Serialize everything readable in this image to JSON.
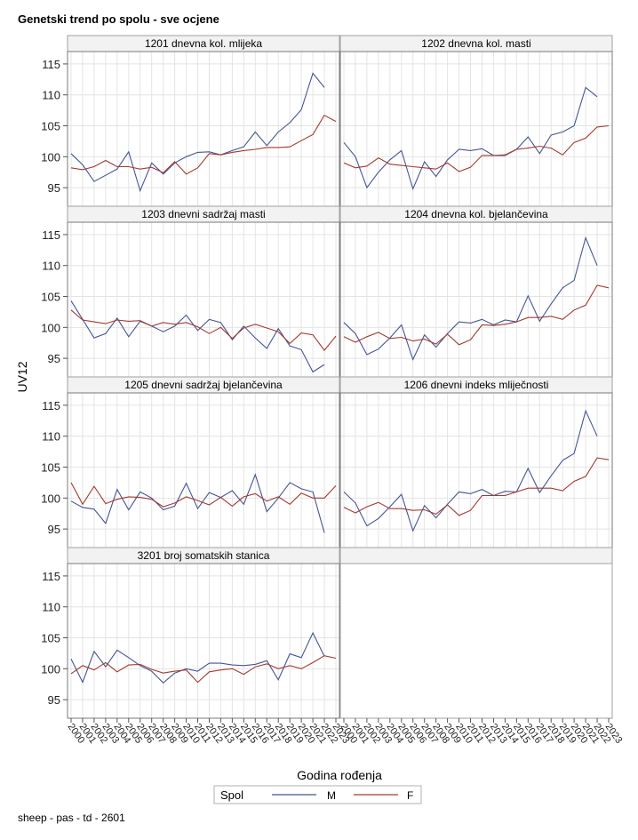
{
  "page": {
    "title": "Genetski trend po spolu - sve ocjene",
    "footnote": "sheep - pas - td - 2601"
  },
  "chart_data": {
    "type": "line",
    "title": "Genetski trend po spolu - sve ocjene",
    "xlabel": "Godina rođenja",
    "ylabel": "UV12",
    "ylim": [
      92,
      117
    ],
    "yticks": [
      95,
      100,
      105,
      110,
      115
    ],
    "xlim": [
      2000,
      2023
    ],
    "xticks": [
      2000,
      2001,
      2002,
      2003,
      2004,
      2005,
      2006,
      2007,
      2008,
      2009,
      2010,
      2011,
      2012,
      2013,
      2014,
      2015,
      2016,
      2017,
      2018,
      2019,
      2020,
      2021,
      2022,
      2023
    ],
    "grid": true,
    "legend": {
      "title": "Spol",
      "position": "bottom",
      "entries": [
        {
          "label": "M",
          "color": "#445694"
        },
        {
          "label": "F",
          "color": "#A23A2E"
        }
      ]
    },
    "panels": [
      {
        "title": "1201 dnevna kol. mlijeka",
        "series": [
          {
            "name": "M",
            "x": [
              2000,
              2001,
              2002,
              2003,
              2004,
              2005,
              2006,
              2007,
              2008,
              2009,
              2010,
              2011,
              2012,
              2013,
              2014,
              2015,
              2016,
              2017,
              2018,
              2019,
              2020,
              2021,
              2022
            ],
            "values": [
              100.5,
              98.7,
              96.0,
              97.0,
              98.0,
              100.8,
              94.5,
              99.0,
              97.2,
              99.0,
              100.0,
              100.7,
              100.8,
              100.3,
              101.0,
              101.6,
              104.0,
              101.8,
              104.0,
              105.5,
              107.6,
              113.5,
              111.2
            ]
          },
          {
            "name": "F",
            "x": [
              2000,
              2001,
              2002,
              2003,
              2004,
              2005,
              2006,
              2007,
              2008,
              2009,
              2010,
              2011,
              2012,
              2013,
              2014,
              2015,
              2016,
              2017,
              2018,
              2019,
              2020,
              2021,
              2022,
              2023
            ],
            "values": [
              98.2,
              97.9,
              98.4,
              99.4,
              98.4,
              98.4,
              98.0,
              98.3,
              97.4,
              99.2,
              97.2,
              98.2,
              100.5,
              100.3,
              100.7,
              101.0,
              101.2,
              101.5,
              101.5,
              101.6,
              102.6,
              103.6,
              106.7,
              105.7
            ]
          }
        ]
      },
      {
        "title": "1202 dnevna kol. masti",
        "series": [
          {
            "name": "M",
            "x": [
              2000,
              2001,
              2002,
              2003,
              2004,
              2005,
              2006,
              2007,
              2008,
              2009,
              2010,
              2011,
              2012,
              2013,
              2014,
              2015,
              2016,
              2017,
              2018,
              2019,
              2020,
              2021,
              2022
            ],
            "values": [
              102.3,
              100.0,
              95.0,
              97.5,
              99.5,
              101.0,
              94.8,
              99.2,
              96.8,
              99.5,
              101.2,
              101.0,
              101.3,
              100.2,
              100.2,
              101.2,
              103.2,
              100.5,
              103.5,
              104.0,
              105.0,
              111.2,
              109.7
            ]
          },
          {
            "name": "F",
            "x": [
              2000,
              2001,
              2002,
              2003,
              2004,
              2005,
              2006,
              2007,
              2008,
              2009,
              2010,
              2011,
              2012,
              2013,
              2014,
              2015,
              2016,
              2017,
              2018,
              2019,
              2020,
              2021,
              2022,
              2023
            ],
            "values": [
              99.0,
              98.2,
              98.5,
              99.8,
              98.8,
              98.6,
              98.4,
              98.2,
              98.0,
              99.0,
              97.6,
              98.3,
              100.2,
              100.2,
              100.3,
              101.2,
              101.4,
              101.7,
              101.4,
              100.3,
              102.3,
              103.0,
              104.8,
              105.0
            ]
          }
        ]
      },
      {
        "title": "1203 dnevni sadržaj masti",
        "series": [
          {
            "name": "M",
            "x": [
              2000,
              2001,
              2002,
              2003,
              2004,
              2005,
              2006,
              2007,
              2008,
              2009,
              2010,
              2011,
              2012,
              2013,
              2014,
              2015,
              2016,
              2017,
              2018,
              2019,
              2020,
              2021,
              2022
            ],
            "values": [
              104.3,
              101.3,
              98.3,
              99.0,
              101.5,
              98.5,
              101.0,
              100.2,
              99.3,
              100.2,
              102.0,
              99.5,
              101.3,
              100.8,
              98.0,
              100.2,
              98.3,
              96.6,
              99.8,
              97.0,
              96.4,
              92.8,
              94.0
            ]
          },
          {
            "name": "F",
            "x": [
              2000,
              2001,
              2002,
              2003,
              2004,
              2005,
              2006,
              2007,
              2008,
              2009,
              2010,
              2011,
              2012,
              2013,
              2014,
              2015,
              2016,
              2017,
              2018,
              2019,
              2020,
              2021,
              2022,
              2023
            ],
            "values": [
              102.8,
              101.2,
              100.9,
              100.6,
              101.2,
              101.0,
              101.1,
              100.2,
              100.8,
              100.5,
              100.8,
              100.1,
              99.0,
              100.0,
              98.2,
              99.9,
              100.5,
              99.9,
              99.3,
              97.4,
              99.1,
              98.8,
              96.3,
              98.6
            ]
          }
        ]
      },
      {
        "title": "1204 dnevna kol. bjelančevina",
        "series": [
          {
            "name": "M",
            "x": [
              2000,
              2001,
              2002,
              2003,
              2004,
              2005,
              2006,
              2007,
              2008,
              2009,
              2010,
              2011,
              2012,
              2013,
              2014,
              2015,
              2016,
              2017,
              2018,
              2019,
              2020,
              2021,
              2022
            ],
            "values": [
              100.8,
              99.0,
              95.6,
              96.5,
              98.3,
              100.4,
              94.8,
              98.8,
              96.8,
              99.0,
              100.9,
              100.7,
              101.3,
              100.4,
              101.2,
              100.9,
              105.1,
              101.0,
              103.8,
              106.4,
              107.6,
              114.5,
              110.0
            ]
          },
          {
            "name": "F",
            "x": [
              2000,
              2001,
              2002,
              2003,
              2004,
              2005,
              2006,
              2007,
              2008,
              2009,
              2010,
              2011,
              2012,
              2013,
              2014,
              2015,
              2016,
              2017,
              2018,
              2019,
              2020,
              2021,
              2022,
              2023
            ],
            "values": [
              98.5,
              97.6,
              98.5,
              99.2,
              98.2,
              98.4,
              97.8,
              98.1,
              97.3,
              98.9,
              97.2,
              98.0,
              100.4,
              100.3,
              100.5,
              100.9,
              101.6,
              101.6,
              101.8,
              101.3,
              102.8,
              103.6,
              106.8,
              106.4
            ]
          }
        ]
      },
      {
        "title": "1205 dnevni sadržaj bjelančevina",
        "series": [
          {
            "name": "M",
            "x": [
              2000,
              2001,
              2002,
              2003,
              2004,
              2005,
              2006,
              2007,
              2008,
              2009,
              2010,
              2011,
              2012,
              2013,
              2014,
              2015,
              2016,
              2017,
              2018,
              2019,
              2020,
              2021,
              2022
            ],
            "values": [
              99.5,
              98.5,
              98.2,
              95.9,
              101.4,
              98.1,
              101.0,
              100.0,
              98.1,
              98.7,
              102.4,
              98.3,
              100.9,
              100.1,
              101.2,
              99.0,
              103.8,
              97.8,
              100.0,
              102.5,
              101.5,
              101.0,
              94.4
            ]
          },
          {
            "name": "F",
            "x": [
              2000,
              2001,
              2002,
              2003,
              2004,
              2005,
              2006,
              2007,
              2008,
              2009,
              2010,
              2011,
              2012,
              2013,
              2014,
              2015,
              2016,
              2017,
              2018,
              2019,
              2020,
              2021,
              2022,
              2023
            ],
            "values": [
              102.5,
              99.0,
              101.9,
              99.1,
              99.8,
              100.2,
              100.1,
              99.8,
              98.6,
              99.2,
              100.2,
              99.6,
              98.9,
              100.1,
              98.7,
              100.2,
              100.7,
              99.5,
              100.2,
              99.0,
              100.8,
              100.0,
              100.0,
              102.0
            ]
          }
        ]
      },
      {
        "title": "1206 dnevni indeks mliječnosti",
        "series": [
          {
            "name": "M",
            "x": [
              2000,
              2001,
              2002,
              2003,
              2004,
              2005,
              2006,
              2007,
              2008,
              2009,
              2010,
              2011,
              2012,
              2013,
              2014,
              2015,
              2016,
              2017,
              2018,
              2019,
              2020,
              2021,
              2022
            ],
            "values": [
              101.0,
              99.2,
              95.5,
              96.7,
              98.6,
              100.6,
              94.7,
              98.8,
              96.8,
              99.0,
              101.0,
              100.7,
              101.4,
              100.4,
              101.1,
              101.0,
              104.8,
              100.9,
              103.6,
              106.1,
              107.2,
              114.1,
              110.0
            ]
          },
          {
            "name": "F",
            "x": [
              2000,
              2001,
              2002,
              2003,
              2004,
              2005,
              2006,
              2007,
              2008,
              2009,
              2010,
              2011,
              2012,
              2013,
              2014,
              2015,
              2016,
              2017,
              2018,
              2019,
              2020,
              2021,
              2022,
              2023
            ],
            "values": [
              98.5,
              97.6,
              98.6,
              99.3,
              98.3,
              98.3,
              98.0,
              98.1,
              97.4,
              98.9,
              97.2,
              98.0,
              100.4,
              100.4,
              100.4,
              101.0,
              101.6,
              101.6,
              101.6,
              101.2,
              102.7,
              103.5,
              106.5,
              106.2
            ]
          }
        ]
      },
      {
        "title": "3201 broj somatskih stanica",
        "series": [
          {
            "name": "M",
            "x": [
              2000,
              2001,
              2002,
              2003,
              2004,
              2005,
              2006,
              2007,
              2008,
              2009,
              2010,
              2011,
              2012,
              2013,
              2014,
              2015,
              2016,
              2017,
              2018,
              2019,
              2020,
              2021,
              2022
            ],
            "values": [
              101.6,
              97.8,
              102.8,
              100.3,
              103.0,
              101.8,
              100.5,
              99.6,
              97.7,
              99.3,
              100.0,
              99.6,
              100.9,
              100.9,
              100.6,
              100.5,
              100.7,
              101.3,
              98.2,
              102.4,
              101.8,
              105.8,
              102.0
            ]
          },
          {
            "name": "F",
            "x": [
              2000,
              2001,
              2002,
              2003,
              2004,
              2005,
              2006,
              2007,
              2008,
              2009,
              2010,
              2011,
              2012,
              2013,
              2014,
              2015,
              2016,
              2017,
              2018,
              2019,
              2020,
              2021,
              2022,
              2023
            ],
            "values": [
              99.2,
              100.5,
              99.8,
              101.0,
              99.5,
              100.6,
              100.7,
              99.9,
              99.3,
              99.6,
              99.8,
              97.8,
              99.5,
              99.8,
              100.0,
              99.1,
              100.3,
              100.8,
              100.0,
              100.5,
              100.0,
              101.0,
              102.1,
              101.7
            ]
          }
        ]
      }
    ]
  }
}
